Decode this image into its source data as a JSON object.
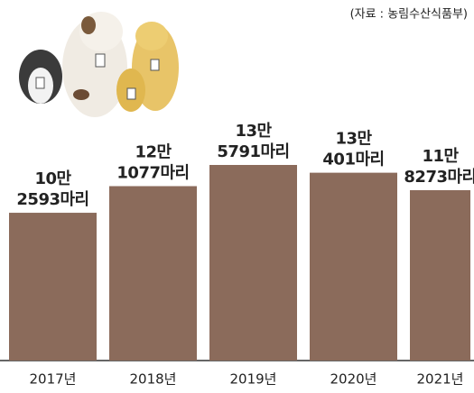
{
  "chart_data": {
    "type": "bar",
    "source": "(자료 : 농림수산식품부)",
    "categories": [
      "2017년",
      "2018년",
      "2019년",
      "2020년",
      "2021년"
    ],
    "values": [
      102593,
      121077,
      135791,
      130401,
      118273
    ],
    "value_labels": [
      [
        "10만",
        "2593마리"
      ],
      [
        "12만",
        "1077마리"
      ],
      [
        "13만",
        "5791마리"
      ],
      [
        "13만",
        "401마리"
      ],
      [
        "11만",
        "8273마리"
      ]
    ],
    "color": "#8b6b5b"
  }
}
